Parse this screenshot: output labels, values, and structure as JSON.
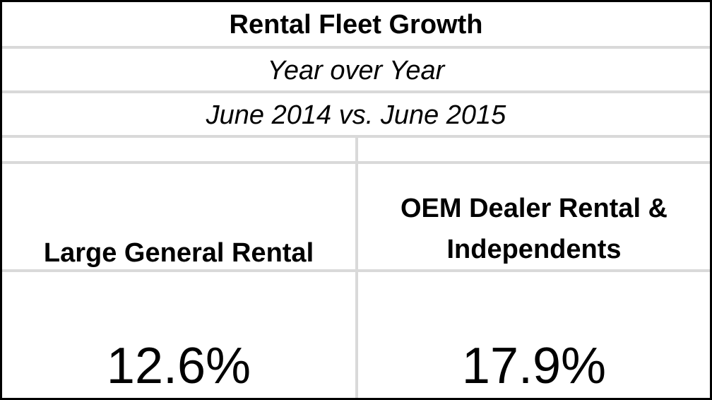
{
  "table": {
    "title": "Rental Fleet Growth",
    "subtitle": "Year over Year",
    "date_range": "June 2014 vs. June 2015",
    "columns": [
      {
        "header_lines": [
          "Large General Rental"
        ],
        "value": "12.6%"
      },
      {
        "header_lines": [
          "OEM Dealer Rental &",
          "Independents"
        ],
        "value": "17.9%"
      }
    ]
  }
}
